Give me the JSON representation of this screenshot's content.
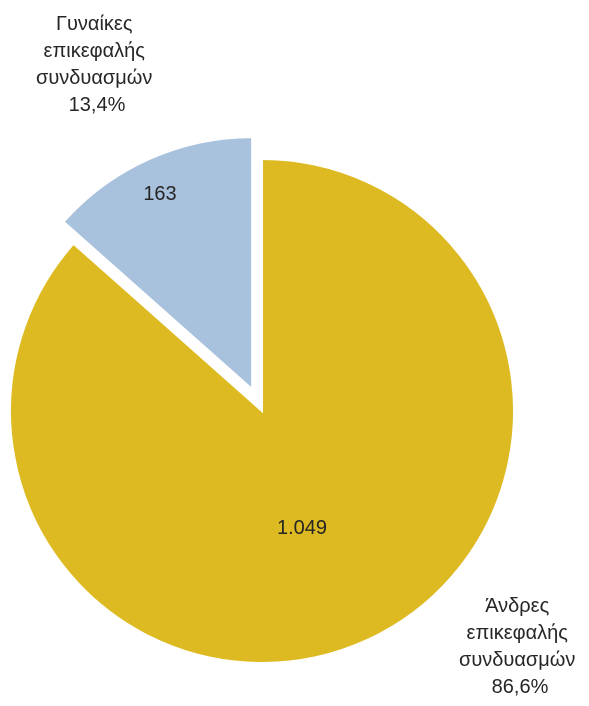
{
  "chart_data": {
    "type": "pie",
    "title": "",
    "legend": "none",
    "slices": [
      {
        "name_lines": [
          "Άνδρες",
          "επικεφαλής",
          "συνδυασμών"
        ],
        "value": 1049,
        "value_label": "1.049",
        "percent": 86.6,
        "percent_label": "86,6%",
        "color": "#DDBA22",
        "exploded": false
      },
      {
        "name_lines": [
          "Γυναίκες",
          "επικεφαλής",
          "συνδυασμών"
        ],
        "value": 163,
        "value_label": "163",
        "percent": 13.4,
        "percent_label": "13,4%",
        "color": "#A8C1DC",
        "exploded": true
      }
    ]
  }
}
